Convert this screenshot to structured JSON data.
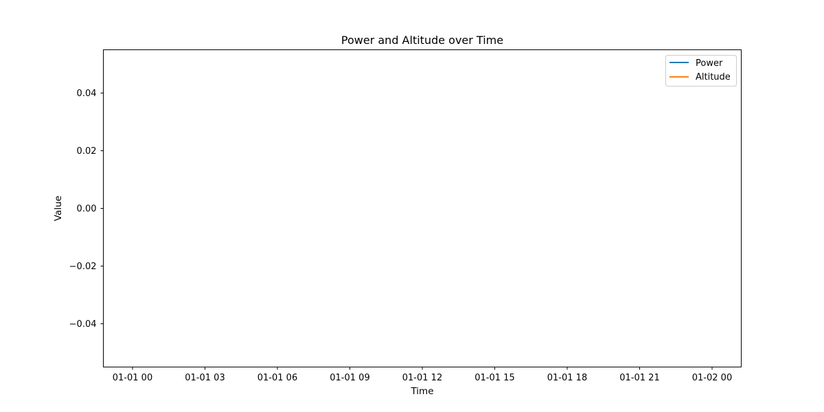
{
  "chart_data": {
    "type": "line",
    "title": "Power and Altitude over Time",
    "xlabel": "Time",
    "ylabel": "Value",
    "x_ticks": [
      "01-01 00",
      "01-01 03",
      "01-01 06",
      "01-01 09",
      "01-01 12",
      "01-01 15",
      "01-01 18",
      "01-01 21",
      "01-02 00"
    ],
    "y_ticks": [
      "0.04",
      "0.02",
      "0.00",
      "−0.02",
      "−0.04"
    ],
    "ylim": [
      -0.055,
      0.055
    ],
    "grid": false,
    "legend_position": "top-right",
    "series": [
      {
        "name": "Power",
        "color": "#1f77b4",
        "values": []
      },
      {
        "name": "Altitude",
        "color": "#ff7f0e",
        "values": []
      }
    ]
  }
}
